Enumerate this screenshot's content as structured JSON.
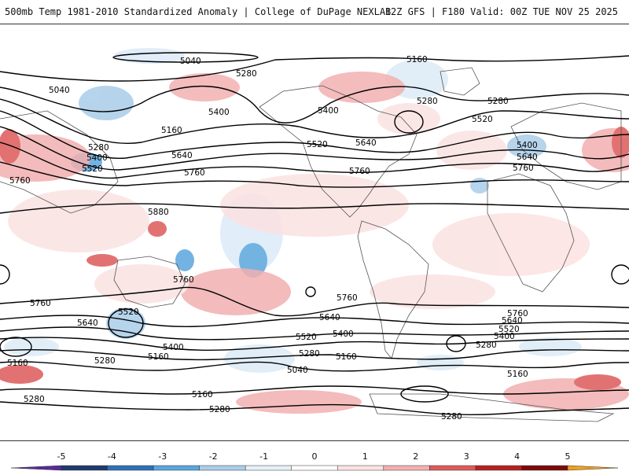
{
  "header": {
    "title": "500mb Temp 1981-2010 Standardized Anomaly | College of DuPage NEXLAB",
    "run_info": "12Z GFS | F180 Valid: 00Z TUE NOV 25 2025"
  },
  "map": {
    "projection": "cylindrical-global",
    "contour_field": "500mb geopotential height (dam)",
    "contour_labels": [
      "5040",
      "5160",
      "5280",
      "5400",
      "5520",
      "5640",
      "5760",
      "5880"
    ],
    "shaded_field": "500mb temperature standardized anomaly",
    "colors": {
      "cold_strong": "#5a2a9a",
      "cold_3": "#1f3f7a",
      "cold_2": "#3a8fd0",
      "cold_1": "#a8cce8",
      "cold_0": "#dcebf7",
      "warm_0": "#fbe3e3",
      "warm_1": "#f2b6b6",
      "warm_2": "#d94b4b",
      "warm_3": "#a01010",
      "warm_strong": "#f0a020"
    }
  },
  "colorbar": {
    "ticks": [
      "-5",
      "-4",
      "-3",
      "-2",
      "-1",
      "0",
      "1",
      "2",
      "3",
      "4",
      "5"
    ],
    "colors": [
      "#5a2a9a",
      "#1f3a6e",
      "#2f6fb8",
      "#5aa6de",
      "#a9cde9",
      "#e4eff8",
      "#ffffff",
      "#fbe2e2",
      "#f2b0b0",
      "#dd5a5a",
      "#b52020",
      "#7d0a0a",
      "#f0a020"
    ]
  }
}
